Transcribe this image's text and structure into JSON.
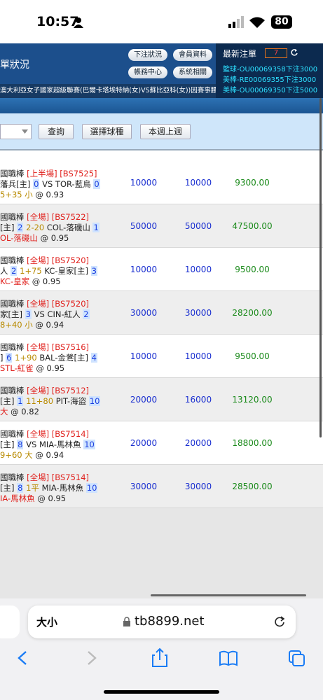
{
  "status": {
    "time": "10:57",
    "battery": "80"
  },
  "header": {
    "title": "單狀況",
    "buttons": [
      "下注狀況",
      "會員資料",
      "帳務中心",
      "系統相關"
    ]
  },
  "latest": {
    "title": "最新注單",
    "count": "7",
    "items": [
      "籃球-OU00069358下注3000",
      "美棒-RE00069355下注3000",
      "美棒-OU00069350下注5000"
    ]
  },
  "ticker": "澳大利亞女子國家超級聯賽(巴爾卡塔埃特納(女)VS蘇比亞科(女))因賽事腰",
  "filter": {
    "buttons": [
      "查詢",
      "選擇球種",
      "本週上週"
    ]
  },
  "rows": [
    {
      "league": "國職棒",
      "period": "[上半場]",
      "code": "[BS7525]",
      "home": "藩兵[主]",
      "home_score": "0",
      "mid": "VS",
      "mid_color": "#222",
      "away": "TOR-藍鳥",
      "away_score": "0",
      "pick": "5+35 小",
      "pick_color": "#b88a00",
      "odds": "@ 0.93",
      "amount": "10000",
      "valid": "10000",
      "win": "9300.00"
    },
    {
      "league": "國職棒",
      "period": "[全場]",
      "code": "[BS7522]",
      "home": "[主]",
      "home_score": "2",
      "mid": "2-20",
      "mid_color": "#b88a00",
      "away": "COL-落磯山",
      "away_score": "1",
      "pick": "OL-落磯山",
      "pick_color": "#e0201c",
      "odds": "@ 0.95",
      "amount": "50000",
      "valid": "50000",
      "win": "47500.00"
    },
    {
      "league": "國職棒",
      "period": "[全場]",
      "code": "[BS7520]",
      "home": "人",
      "home_score": "2",
      "mid": "1+75",
      "mid_color": "#b88a00",
      "away": "KC-皇家[主]",
      "away_score": "3",
      "pick": "KC-皇家",
      "pick_color": "#e0201c",
      "odds": "@ 0.95",
      "amount": "10000",
      "valid": "10000",
      "win": "9500.00"
    },
    {
      "league": "國職棒",
      "period": "[全場]",
      "code": "[BS7520]",
      "home": "家[主]",
      "home_score": "3",
      "mid": "VS",
      "mid_color": "#222",
      "away": "CIN-紅人",
      "away_score": "2",
      "pick": "8+40 小",
      "pick_color": "#b88a00",
      "odds": "@ 0.94",
      "amount": "30000",
      "valid": "30000",
      "win": "28200.00"
    },
    {
      "league": "國職棒",
      "period": "[全場]",
      "code": "[BS7516]",
      "home": "]",
      "home_score": "6",
      "mid": "1+90",
      "mid_color": "#b88a00",
      "away": "BAL-金鶯[主]",
      "away_score": "4",
      "pick": "STL-紅雀",
      "pick_color": "#e0201c",
      "odds": "@ 0.95",
      "amount": "10000",
      "valid": "10000",
      "win": "9500.00"
    },
    {
      "league": "國職棒",
      "period": "[全場]",
      "code": "[BS7512]",
      "home": "[主]",
      "home_score": "1",
      "mid": "11+80",
      "mid_color": "#b88a00",
      "away": "PIT-海盜",
      "away_score": "10",
      "pick": "大",
      "pick_color": "#e0201c",
      "odds": "@ 0.82",
      "amount": "20000",
      "valid": "16000",
      "win": "13120.00"
    },
    {
      "league": "國職棒",
      "period": "[全場]",
      "code": "[BS7514]",
      "home": "[主]",
      "home_score": "8",
      "mid": "VS",
      "mid_color": "#222",
      "away": "MIA-馬林魚",
      "away_score": "10",
      "pick": "9+60 大",
      "pick_color": "#b88a00",
      "odds": "@ 0.94",
      "amount": "20000",
      "valid": "20000",
      "win": "18800.00"
    },
    {
      "league": "國職棒",
      "period": "[全場]",
      "code": "[BS7514]",
      "home": "[主]",
      "home_score": "8",
      "mid": "1平",
      "mid_color": "#b88a00",
      "away": "MIA-馬林魚",
      "away_score": "10",
      "pick": "IA-馬林魚",
      "pick_color": "#e0201c",
      "odds": "@ 0.95",
      "amount": "30000",
      "valid": "30000",
      "win": "28500.00"
    }
  ],
  "browser": {
    "text_size": "大小",
    "url": "tb8899.net"
  }
}
